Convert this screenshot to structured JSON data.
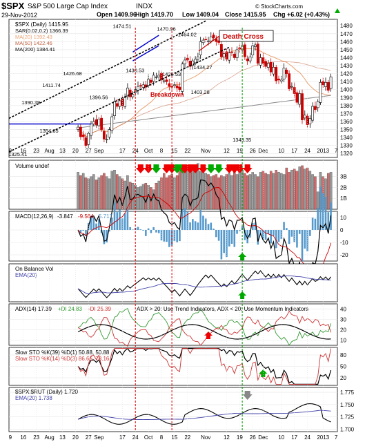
{
  "header": {
    "symbol": "$SPX",
    "name": "S&P 500 Large Cap Index",
    "exchange": "INDX",
    "date": "29-Nov-2012",
    "open_label": "Open",
    "open": "1409.96",
    "high_label": "High",
    "high": "1419.70",
    "low_label": "Low",
    "low": "1409.04",
    "close_label": "Close",
    "close": "1415.95",
    "chg_label": "Chg",
    "chg": "+6.02 (+0.43%)",
    "chg_arrow": "up",
    "watermark": "© StockCharts.com"
  },
  "colors": {
    "up_candle": "#ffffff",
    "down_candle": "#cc0000",
    "ma20": "#e8a070",
    "ma50": "#c06040",
    "ma200": "#888888",
    "sar": "#555555",
    "trend": "#000000",
    "blue_line": "#0000cc",
    "vline_red": "#dd0000",
    "vline_green": "#009900",
    "arrow_red": "#ee0000",
    "arrow_green": "#00aa00",
    "volume_up": "#999999",
    "volume_down": "#d46a6a",
    "macd_hist": "#5599cc",
    "macd_signal": "#cc0000",
    "ema": "#4444aa",
    "plus_di": "#339933",
    "minus_di": "#cc3333",
    "slow_k": "#cc3333"
  },
  "chart_data": [
    {
      "type": "line",
      "panel": "price",
      "legend": [
        "$SPX (Daily) 1415.95",
        "SAR(0.02,0.2) 1366.39",
        "MA(20) 1392.43",
        "MA(50) 1422.46",
        "MA(200) 1384.41"
      ],
      "y_ticks": [
        1320,
        1330,
        1340,
        1350,
        1360,
        1370,
        1380,
        1390,
        1400,
        1410,
        1420,
        1430,
        1440,
        1450,
        1460,
        1470,
        1480
      ],
      "ylim": [
        1315,
        1488
      ],
      "x_labels": [
        {
          "label": "9",
          "i": 0
        },
        {
          "label": "16",
          "i": 5
        },
        {
          "label": "23",
          "i": 10
        },
        {
          "label": "Aug",
          "i": 15
        },
        {
          "label": "13",
          "i": 20
        },
        {
          "label": "20",
          "i": 25
        },
        {
          "label": "27",
          "i": 30
        },
        {
          "label": "Sep",
          "i": 34
        },
        {
          "label": "17",
          "i": 43
        },
        {
          "label": "24",
          "i": 48
        },
        {
          "label": "Oct",
          "i": 53
        },
        {
          "label": "8",
          "i": 58
        },
        {
          "label": "15",
          "i": 63
        },
        {
          "label": "22",
          "i": 68
        },
        {
          "label": "Nov",
          "i": 75
        },
        {
          "label": "12",
          "i": 83
        },
        {
          "label": "19",
          "i": 88
        },
        {
          "label": "26",
          "i": 93
        },
        {
          "label": "Dec",
          "i": 97
        },
        {
          "label": "10",
          "i": 104
        },
        {
          "label": "17",
          "i": 109
        },
        {
          "label": "24",
          "i": 114
        },
        {
          "label": "2013",
          "i": 120
        },
        {
          "label": "7",
          "i": 125
        }
      ],
      "n_slots": 126,
      "close": [
        1353,
        1341,
        1341,
        1330,
        1345,
        1357,
        1360,
        1356,
        1363,
        1350,
        1338,
        1338,
        1350,
        1366,
        1385,
        1379,
        1386,
        1380,
        1390,
        1402,
        1391,
        1394,
        1400,
        1404,
        1405,
        1406,
        1403,
        1413,
        1409,
        1418,
        1416,
        1418,
        1412,
        1411,
        1410,
        1404,
        1403,
        1406,
        1402,
        1400,
        1432,
        1437,
        1437,
        1429,
        1436,
        1438,
        1441,
        1460,
        1462,
        1463,
        1461,
        1466,
        1465,
        1460,
        1459,
        1441,
        1445,
        1438,
        1446,
        1447,
        1440,
        1450,
        1451,
        1455,
        1441,
        1436,
        1441,
        1455,
        1456,
        1433,
        1440,
        1433,
        1429,
        1433,
        1422,
        1428,
        1411,
        1412,
        1412,
        1427,
        1420,
        1401,
        1404,
        1395,
        1384,
        1395,
        1362,
        1368,
        1356,
        1364,
        1379,
        1375,
        1385,
        1409,
        1406,
        1409,
        1399,
        1416
      ],
      "annotations": [
        {
          "text": "1474.51",
          "i": 43,
          "v": 1474.51
        },
        {
          "text": "1470.96",
          "i": 60,
          "v": 1470.96
        },
        {
          "text": "1464.02",
          "i": 68,
          "v": 1464.02
        },
        {
          "text": "1434.27",
          "i": 74,
          "v": 1434.27
        },
        {
          "text": "1426.68",
          "i": 24,
          "v": 1426.68
        },
        {
          "text": "1411.74",
          "i": 16,
          "v": 1411.74
        },
        {
          "text": "1430.53",
          "i": 48,
          "v": 1430.53
        },
        {
          "text": "1425.53",
          "i": 62,
          "v": 1425.53
        },
        {
          "text": "1403.28",
          "i": 73,
          "v": 1403.28
        },
        {
          "text": "1396.56",
          "i": 34,
          "v": 1396.56
        },
        {
          "text": "1390.39",
          "i": 8,
          "v": 1390.39
        },
        {
          "text": "1354.65",
          "i": 15,
          "v": 1354.65
        },
        {
          "text": "1343.35",
          "i": 89,
          "v": 1343.35
        },
        {
          "text": "1325.41",
          "i": 3,
          "v": 1325.41
        }
      ],
      "callouts": [
        "Death Cross",
        "Breakdown"
      ]
    },
    {
      "type": "bar",
      "panel": "volume",
      "legend": "Volume undef",
      "y_ticks": [
        "1B",
        "2B",
        "3B"
      ],
      "values": [
        3.4,
        3.1,
        3.3,
        2.9,
        2.8,
        3.0,
        3.2,
        2.7,
        2.9,
        3.1,
        3.3,
        3.0,
        2.8,
        3.5,
        3.6,
        3.2,
        3.0,
        2.8,
        2.6,
        3.1,
        2.5,
        2.4,
        2.2,
        2.0,
        2.1,
        2.3,
        2.4,
        2.2,
        2.0,
        1.8,
        2.4,
        2.6,
        2.9,
        3.3,
        2.9,
        3.1,
        3.2,
        2.9,
        3.1,
        3.5,
        3.8,
        3.6,
        3.5,
        3.4,
        3.6,
        3.9,
        4.2,
        3.5,
        3.4,
        3.3,
        3.2,
        3.0,
        3.1,
        3.2,
        2.9,
        3.1,
        3.0,
        3.2,
        3.3,
        3.1,
        3.4,
        3.2,
        3.5,
        3.6,
        3.3,
        3.1,
        3.2,
        3.4,
        3.2,
        3.0,
        3.4,
        3.5,
        3.3,
        3.2,
        3.5,
        3.3,
        3.6,
        3.4,
        3.3,
        3.2,
        3.8,
        3.4,
        3.6,
        3.7,
        3.5,
        3.9,
        4.0,
        3.7,
        3.8,
        3.5,
        3.2,
        3.0,
        1.6,
        3.4,
        3.0,
        2.8,
        3.3,
        3.4
      ]
    },
    {
      "type": "line",
      "panel": "macd",
      "legend": [
        "MACD(12,26,9)",
        "-3.847",
        "-9.564",
        "5.717"
      ],
      "y_ticks": [
        -20,
        -10,
        0,
        10
      ]
    },
    {
      "type": "line",
      "panel": "obv",
      "legend": [
        "On Balance Vol",
        "EMA(20)"
      ]
    },
    {
      "type": "line",
      "panel": "adx",
      "legend": [
        "ADX(14) 17.39",
        "+DI 24.83",
        "-DI 25.39"
      ],
      "note": "ADX > 20: Use Trend Indicators, ADX < 20: Use Momentum Indicators",
      "y_ticks": [
        10,
        20,
        30,
        40
      ]
    },
    {
      "type": "line",
      "panel": "stoch",
      "legend": [
        "Slow STO %K(39) %D(1) 50.88, 50.88",
        "Slow STO %K(14) %D(3) 86.66, 78.16"
      ],
      "y_ticks": [
        20,
        50,
        80
      ]
    },
    {
      "type": "line",
      "panel": "ratio",
      "legend": [
        "$SPX:$RUT (Daily) 1.720",
        "EMA(20) 1.738"
      ],
      "y_ticks": [
        "1.700",
        "1.725",
        "1.750",
        "1.775"
      ]
    }
  ]
}
